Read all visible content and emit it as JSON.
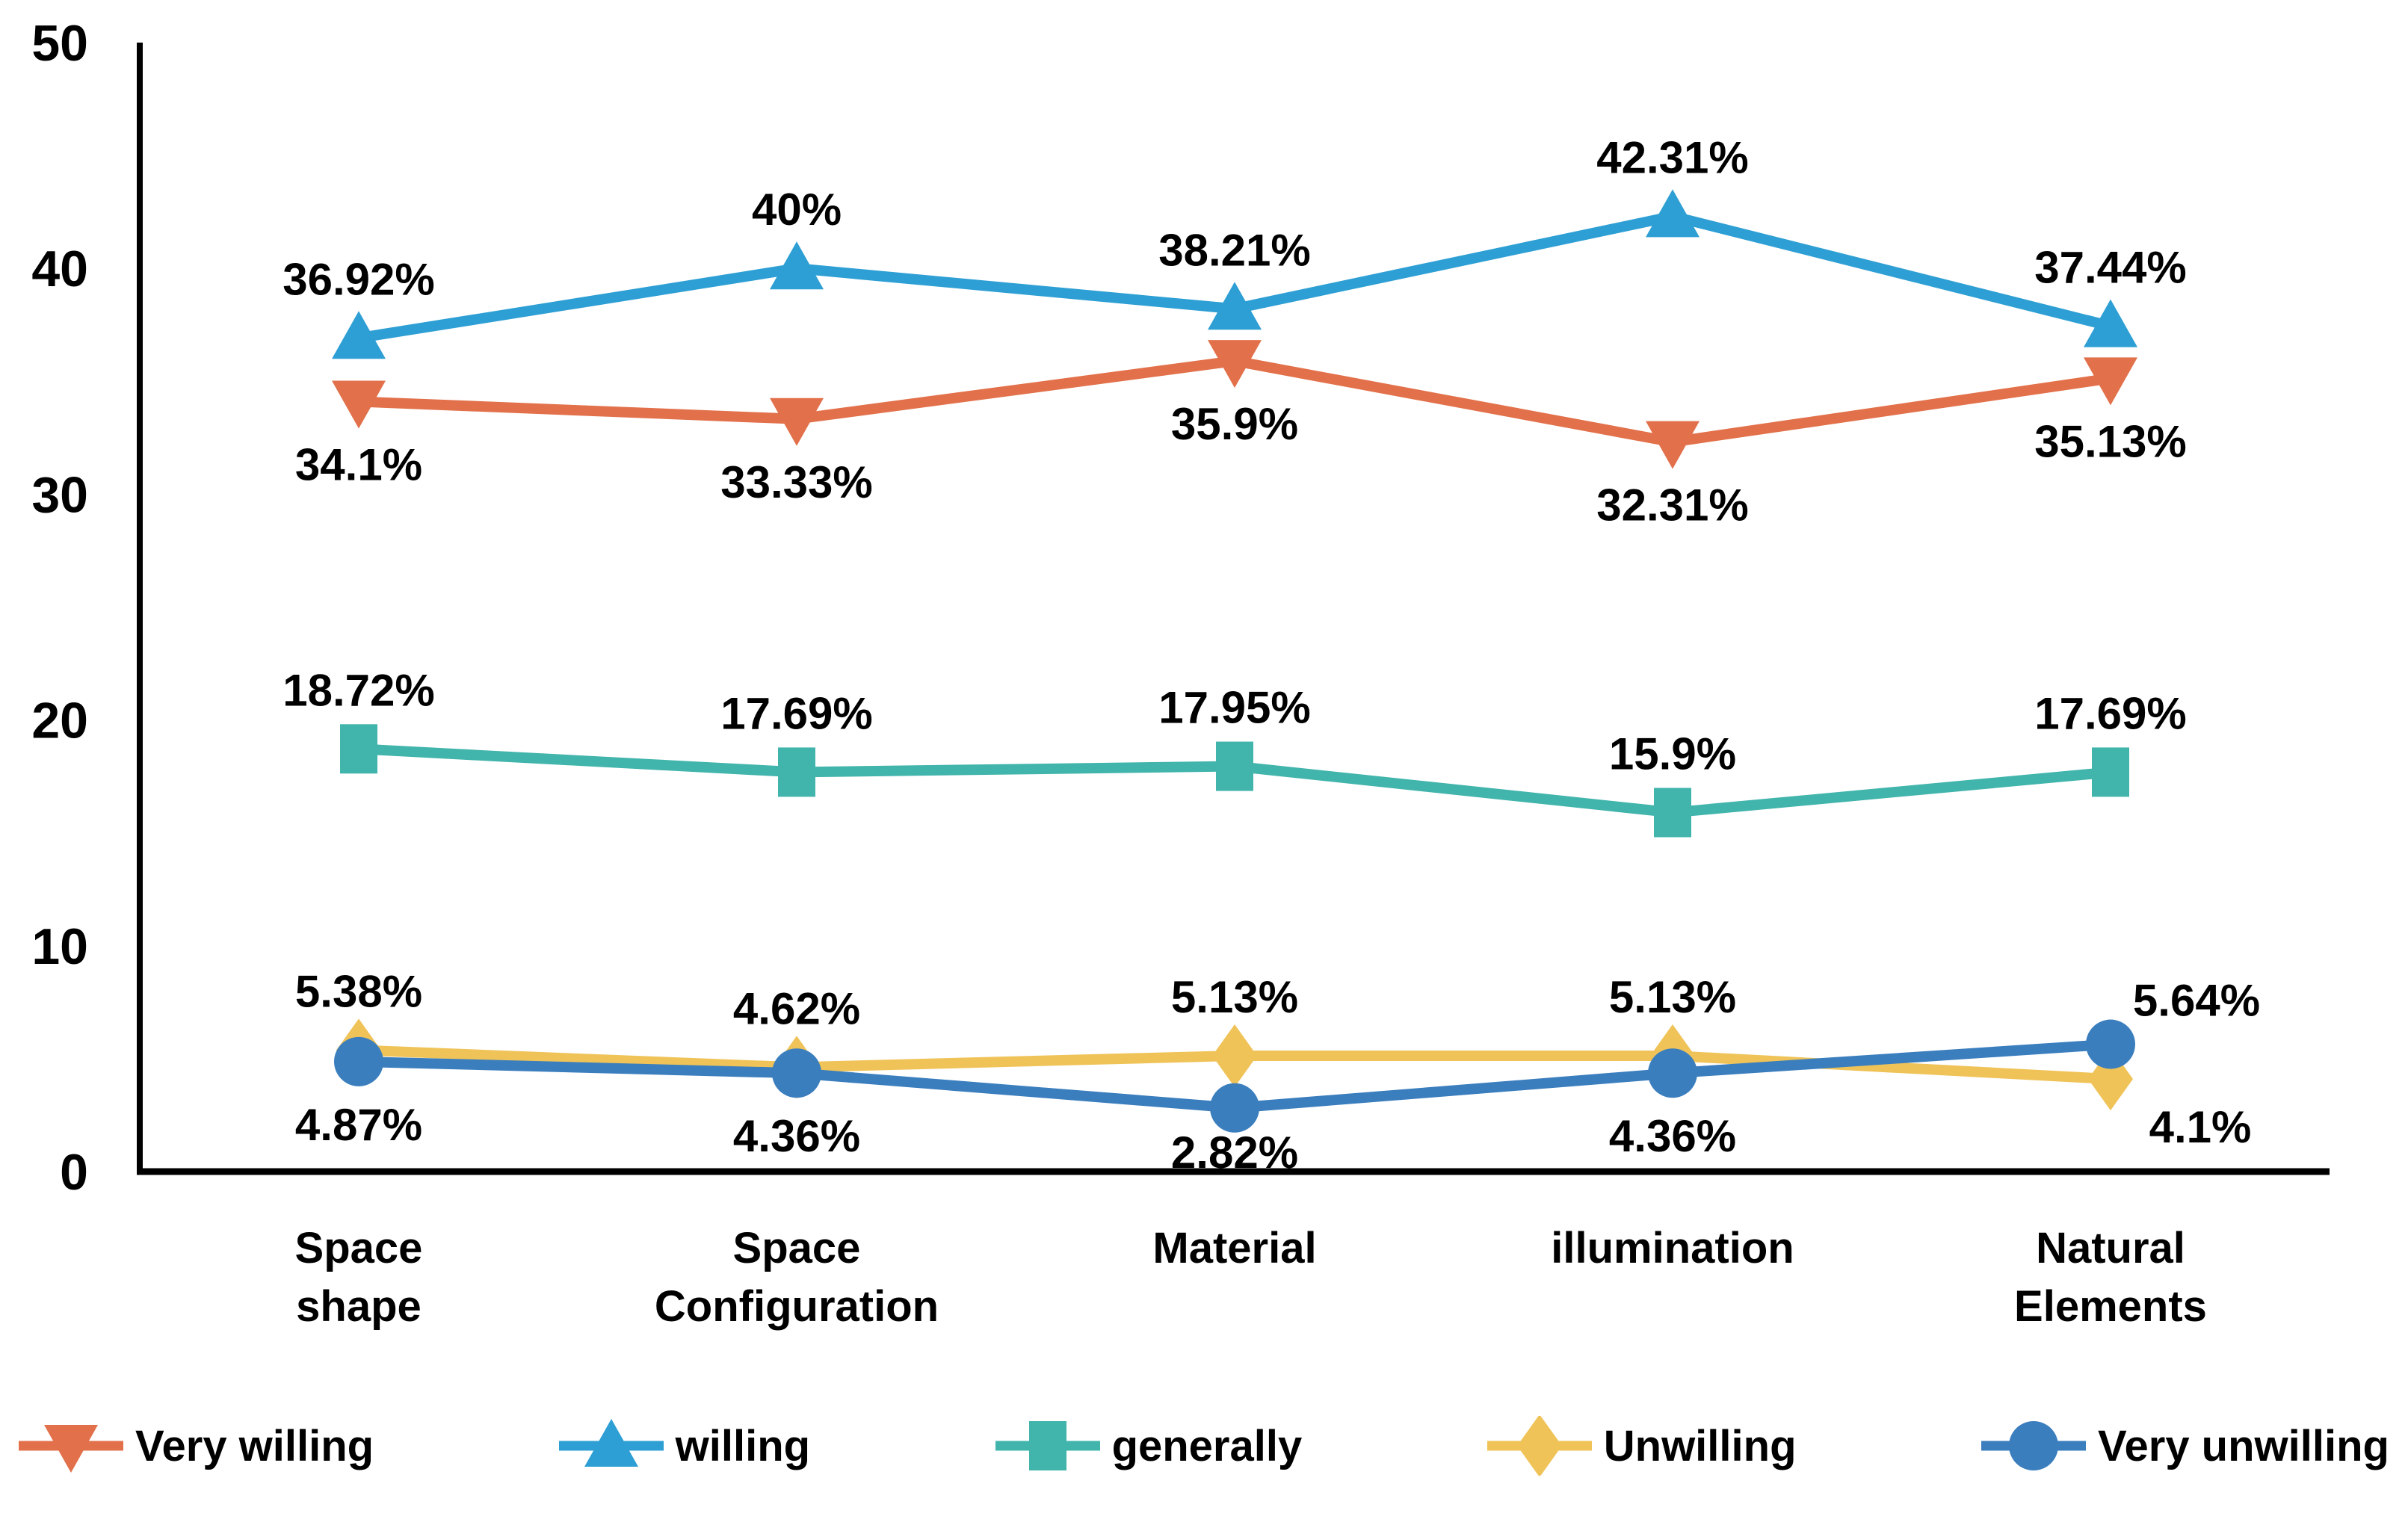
{
  "chart_data": {
    "type": "line",
    "title": "",
    "xlabel": "",
    "ylabel": "",
    "grid": false,
    "legend_position": "bottom",
    "background": "#ffffff",
    "axis_color": "#000000",
    "categories": [
      [
        "Space",
        "shape"
      ],
      [
        "Space",
        "Configuration"
      ],
      [
        "Material"
      ],
      [
        "illumination"
      ],
      [
        "Natural",
        "Elements"
      ]
    ],
    "y_axis": {
      "min": 0,
      "max": 50,
      "ticks": [
        0,
        10,
        20,
        30,
        40,
        50
      ]
    },
    "series": [
      {
        "name": "Very willing",
        "color": "#E2714B",
        "marker": "triangle-down",
        "values": [
          34.1,
          33.33,
          35.9,
          32.31,
          35.13
        ],
        "labels": [
          "34.1%",
          "33.33%",
          "35.9%",
          "32.31%",
          "35.13%"
        ],
        "label_pos": "below",
        "label_overrides": {}
      },
      {
        "name": "willing",
        "color": "#2E9FD4",
        "marker": "triangle-up",
        "values": [
          36.92,
          40,
          38.21,
          42.31,
          37.44
        ],
        "labels": [
          "36.92%",
          "40%",
          "38.21%",
          "42.31%",
          "37.44%"
        ],
        "label_pos": "above",
        "label_overrides": {}
      },
      {
        "name": "generally",
        "color": "#41B4AC",
        "marker": "square",
        "values": [
          18.72,
          17.69,
          17.95,
          15.9,
          17.69
        ],
        "labels": [
          "18.72%",
          "17.69%",
          "17.95%",
          "15.9%",
          "17.69%"
        ],
        "label_pos": "above",
        "label_overrides": {}
      },
      {
        "name": "Unwilling",
        "color": "#EFC358",
        "marker": "diamond",
        "values": [
          5.38,
          4.62,
          5.13,
          5.13,
          4.1
        ],
        "labels": [
          "5.38%",
          "4.62%",
          "5.13%",
          "5.13%",
          "4.1%"
        ],
        "label_pos": "above",
        "label_overrides": {
          "4": [
            120,
            85
          ]
        }
      },
      {
        "name": "Very unwilling",
        "color": "#3B7EBE",
        "marker": "circle",
        "values": [
          4.87,
          4.36,
          2.82,
          4.36,
          5.64
        ],
        "labels": [
          "4.87%",
          "4.36%",
          "2.82%",
          "4.36%",
          "5.64%"
        ],
        "label_pos": "below",
        "label_overrides": {
          "2": [
            0,
            80
          ],
          "4": [
            115,
            -38
          ]
        }
      }
    ]
  },
  "legend": {
    "items": [
      "Very willing",
      "willing",
      "generally",
      "Unwilling",
      "Very unwilling"
    ]
  }
}
